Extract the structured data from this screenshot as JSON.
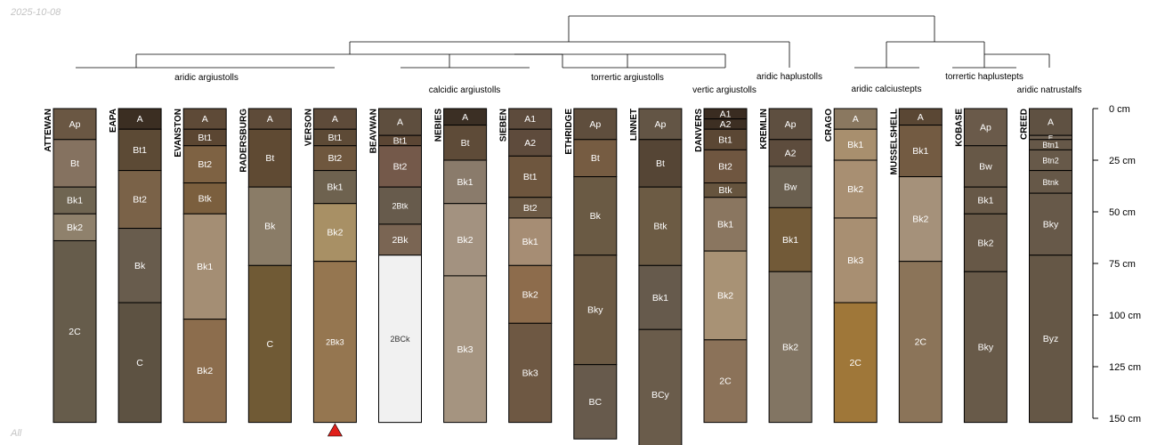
{
  "header": {
    "date": "2025-10-08"
  },
  "footer": {
    "label": "All"
  },
  "colors": {
    "line": "#000000",
    "label_text": "#ffffff",
    "light_label_text": "#333333",
    "marker": "#e0201b"
  },
  "axis": {
    "unit": "cm",
    "min": 0,
    "max": 150,
    "ticks": [
      "0 cm",
      "25 cm",
      "50 cm",
      "75 cm",
      "100 cm",
      "125 cm",
      "150 cm"
    ]
  },
  "taxa": [
    "aridic argiustolls",
    "calcidic argiustolls",
    "torrertic argiustolls",
    "vertic argiustolls",
    "aridic haplustolls",
    "aridic calciustepts",
    "torrertic haplustepts",
    "aridic natrustalfs"
  ],
  "profiles": [
    {
      "name": "ATTEWAN",
      "horizons": [
        {
          "name": "Ap",
          "top": 0,
          "bottom": 15,
          "color": "#6a5743"
        },
        {
          "name": "Bt",
          "top": 15,
          "bottom": 38,
          "color": "#857260"
        },
        {
          "name": "Bk1",
          "top": 38,
          "bottom": 51,
          "color": "#6f6552"
        },
        {
          "name": "Bk2",
          "top": 51,
          "bottom": 64,
          "color": "#8f816c"
        },
        {
          "name": "2C",
          "top": 64,
          "bottom": 152,
          "color": "#665c4b"
        }
      ]
    },
    {
      "name": "EAPA",
      "horizons": [
        {
          "name": "A",
          "top": 0,
          "bottom": 10,
          "color": "#3b2e22"
        },
        {
          "name": "Bt1",
          "top": 10,
          "bottom": 30,
          "color": "#5c4a35"
        },
        {
          "name": "Bt2",
          "top": 30,
          "bottom": 58,
          "color": "#7a6248"
        },
        {
          "name": "Bk",
          "top": 58,
          "bottom": 94,
          "color": "#685c4d"
        },
        {
          "name": "C",
          "top": 94,
          "bottom": 152,
          "color": "#5d5242"
        }
      ]
    },
    {
      "name": "EVANSTON",
      "horizons": [
        {
          "name": "A",
          "top": 0,
          "bottom": 10,
          "color": "#5e4a37"
        },
        {
          "name": "Bt1",
          "top": 10,
          "bottom": 18,
          "color": "#5b4632"
        },
        {
          "name": "Bt2",
          "top": 18,
          "bottom": 36,
          "color": "#7e6243"
        },
        {
          "name": "Btk",
          "top": 36,
          "bottom": 51,
          "color": "#7b5f3e"
        },
        {
          "name": "Bk1",
          "top": 51,
          "bottom": 102,
          "color": "#a48e74"
        },
        {
          "name": "Bk2",
          "top": 102,
          "bottom": 152,
          "color": "#8c6d4d"
        }
      ]
    },
    {
      "name": "RADERSBURG",
      "horizons": [
        {
          "name": "A",
          "top": 0,
          "bottom": 10,
          "color": "#5e4b39"
        },
        {
          "name": "Bt",
          "top": 10,
          "bottom": 38,
          "color": "#5f4a33"
        },
        {
          "name": "Bk",
          "top": 38,
          "bottom": 76,
          "color": "#8a7c67"
        },
        {
          "name": "C",
          "top": 76,
          "bottom": 152,
          "color": "#705a35"
        }
      ]
    },
    {
      "name": "VERSON",
      "marker": true,
      "horizons": [
        {
          "name": "A",
          "top": 0,
          "bottom": 10,
          "color": "#5e4b3a"
        },
        {
          "name": "Bt1",
          "top": 10,
          "bottom": 18,
          "color": "#5d4a36"
        },
        {
          "name": "Bt2",
          "top": 18,
          "bottom": 30,
          "color": "#6f573e"
        },
        {
          "name": "Bk1",
          "top": 30,
          "bottom": 46,
          "color": "#6e624f"
        },
        {
          "name": "Bk2",
          "top": 46,
          "bottom": 74,
          "color": "#a89065"
        },
        {
          "name": "2Bk3",
          "top": 74,
          "bottom": 152,
          "color": "#957650"
        }
      ]
    },
    {
      "name": "BEAVWAN",
      "horizons": [
        {
          "name": "A",
          "top": 0,
          "bottom": 13,
          "color": "#5e4e3e"
        },
        {
          "name": "Bt1",
          "top": 13,
          "bottom": 18,
          "color": "#5b4634"
        },
        {
          "name": "Bt2",
          "top": 18,
          "bottom": 38,
          "color": "#74594a"
        },
        {
          "name": "2Btk",
          "top": 38,
          "bottom": 56,
          "color": "#675b4c"
        },
        {
          "name": "2Bk",
          "top": 56,
          "bottom": 71,
          "color": "#7a6553"
        },
        {
          "name": "2BCk",
          "top": 71,
          "bottom": 152,
          "color": "#f1f1f1"
        }
      ]
    },
    {
      "name": "NEBIES",
      "horizons": [
        {
          "name": "A",
          "top": 0,
          "bottom": 8,
          "color": "#3b2f24"
        },
        {
          "name": "Bt",
          "top": 8,
          "bottom": 25,
          "color": "#5e4b38"
        },
        {
          "name": "Bk1",
          "top": 25,
          "bottom": 46,
          "color": "#8a7b6b"
        },
        {
          "name": "Bk2",
          "top": 46,
          "bottom": 81,
          "color": "#a39280"
        },
        {
          "name": "Bk3",
          "top": 81,
          "bottom": 152,
          "color": "#a59480"
        }
      ]
    },
    {
      "name": "SIEBEN",
      "horizons": [
        {
          "name": "A1",
          "top": 0,
          "bottom": 10,
          "color": "#5d4b3c"
        },
        {
          "name": "A2",
          "top": 10,
          "bottom": 23,
          "color": "#5e4b3c"
        },
        {
          "name": "Bt1",
          "top": 23,
          "bottom": 43,
          "color": "#6e563e"
        },
        {
          "name": "Bt2",
          "top": 43,
          "bottom": 53,
          "color": "#6d5a45"
        },
        {
          "name": "Bk1",
          "top": 53,
          "bottom": 76,
          "color": "#a68d74"
        },
        {
          "name": "Bk2",
          "top": 76,
          "bottom": 104,
          "color": "#8d6c4c"
        },
        {
          "name": "Bk3",
          "top": 104,
          "bottom": 152,
          "color": "#6e5843"
        }
      ]
    },
    {
      "name": "ETHRIDGE",
      "horizons": [
        {
          "name": "Ap",
          "top": 0,
          "bottom": 15,
          "color": "#5f4e3d"
        },
        {
          "name": "Bt",
          "top": 15,
          "bottom": 33,
          "color": "#765c42"
        },
        {
          "name": "Bk",
          "top": 33,
          "bottom": 71,
          "color": "#6a5a44"
        },
        {
          "name": "Bky",
          "top": 71,
          "bottom": 124,
          "color": "#6c5a44"
        },
        {
          "name": "BC",
          "top": 124,
          "bottom": 160,
          "color": "#675a4c"
        }
      ]
    },
    {
      "name": "LINNET",
      "horizons": [
        {
          "name": "Ap",
          "top": 0,
          "bottom": 15,
          "color": "#635545"
        },
        {
          "name": "Bt",
          "top": 15,
          "bottom": 38,
          "color": "#554535"
        },
        {
          "name": "Btk",
          "top": 38,
          "bottom": 76,
          "color": "#6c5b44"
        },
        {
          "name": "Bk1",
          "top": 76,
          "bottom": 107,
          "color": "#665a4c"
        },
        {
          "name": "BCy",
          "top": 107,
          "bottom": 170,
          "color": "#6a5c4b"
        }
      ]
    },
    {
      "name": "DANVERS",
      "horizons": [
        {
          "name": "A1",
          "top": 0,
          "bottom": 5,
          "color": "#3a2c21"
        },
        {
          "name": "A2",
          "top": 5,
          "bottom": 10,
          "color": "#3d2f23"
        },
        {
          "name": "Bt1",
          "top": 10,
          "bottom": 20,
          "color": "#5b4734"
        },
        {
          "name": "Bt2",
          "top": 20,
          "bottom": 36,
          "color": "#6f5640"
        },
        {
          "name": "Btk",
          "top": 36,
          "bottom": 43,
          "color": "#66543e"
        },
        {
          "name": "Bk1",
          "top": 43,
          "bottom": 69,
          "color": "#8a7660"
        },
        {
          "name": "Bk2",
          "top": 69,
          "bottom": 112,
          "color": "#a89275"
        },
        {
          "name": "2C",
          "top": 112,
          "bottom": 152,
          "color": "#8b7259"
        }
      ]
    },
    {
      "name": "KREMLIN",
      "horizons": [
        {
          "name": "Ap",
          "top": 0,
          "bottom": 15,
          "color": "#5e4f40"
        },
        {
          "name": "A2",
          "top": 15,
          "bottom": 28,
          "color": "#5d4c3d"
        },
        {
          "name": "Bw",
          "top": 28,
          "bottom": 48,
          "color": "#6a5f4f"
        },
        {
          "name": "Bk1",
          "top": 48,
          "bottom": 79,
          "color": "#725a38"
        },
        {
          "name": "Bk2",
          "top": 79,
          "bottom": 152,
          "color": "#827563"
        }
      ]
    },
    {
      "name": "CRAGO",
      "horizons": [
        {
          "name": "A",
          "top": 0,
          "bottom": 10,
          "color": "#8a7860"
        },
        {
          "name": "Bk1",
          "top": 10,
          "bottom": 25,
          "color": "#a88f6e"
        },
        {
          "name": "Bk2",
          "top": 25,
          "bottom": 53,
          "color": "#a88f72"
        },
        {
          "name": "Bk3",
          "top": 53,
          "bottom": 94,
          "color": "#a88f72"
        },
        {
          "name": "2C",
          "top": 94,
          "bottom": 152,
          "color": "#9f7739"
        }
      ]
    },
    {
      "name": "MUSSELSHELL",
      "horizons": [
        {
          "name": "A",
          "top": 0,
          "bottom": 8,
          "color": "#5a4734"
        },
        {
          "name": "Bk1",
          "top": 8,
          "bottom": 33,
          "color": "#735b42"
        },
        {
          "name": "Bk2",
          "top": 33,
          "bottom": 74,
          "color": "#a5917a"
        },
        {
          "name": "2C",
          "top": 74,
          "bottom": 152,
          "color": "#8b7459"
        }
      ]
    },
    {
      "name": "KOBASE",
      "horizons": [
        {
          "name": "Ap",
          "top": 0,
          "bottom": 18,
          "color": "#6a5a4a"
        },
        {
          "name": "Bw",
          "top": 18,
          "bottom": 38,
          "color": "#675847"
        },
        {
          "name": "Bk1",
          "top": 38,
          "bottom": 51,
          "color": "#675847"
        },
        {
          "name": "Bk2",
          "top": 51,
          "bottom": 79,
          "color": "#675847"
        },
        {
          "name": "Bky",
          "top": 79,
          "bottom": 152,
          "color": "#685a49"
        }
      ]
    },
    {
      "name": "CREED",
      "horizons": [
        {
          "name": "A",
          "top": 0,
          "bottom": 13,
          "color": "#5f5142"
        },
        {
          "name": "E",
          "top": 13,
          "bottom": 15,
          "color": "#6d5f50"
        },
        {
          "name": "Btn1",
          "top": 15,
          "bottom": 20,
          "color": "#665848"
        },
        {
          "name": "Btn2",
          "top": 20,
          "bottom": 30,
          "color": "#675949"
        },
        {
          "name": "Btnk",
          "top": 30,
          "bottom": 41,
          "color": "#665848"
        },
        {
          "name": "Bky",
          "top": 41,
          "bottom": 71,
          "color": "#675949"
        },
        {
          "name": "Byz",
          "top": 71,
          "bottom": 152,
          "color": "#655746"
        }
      ]
    }
  ]
}
